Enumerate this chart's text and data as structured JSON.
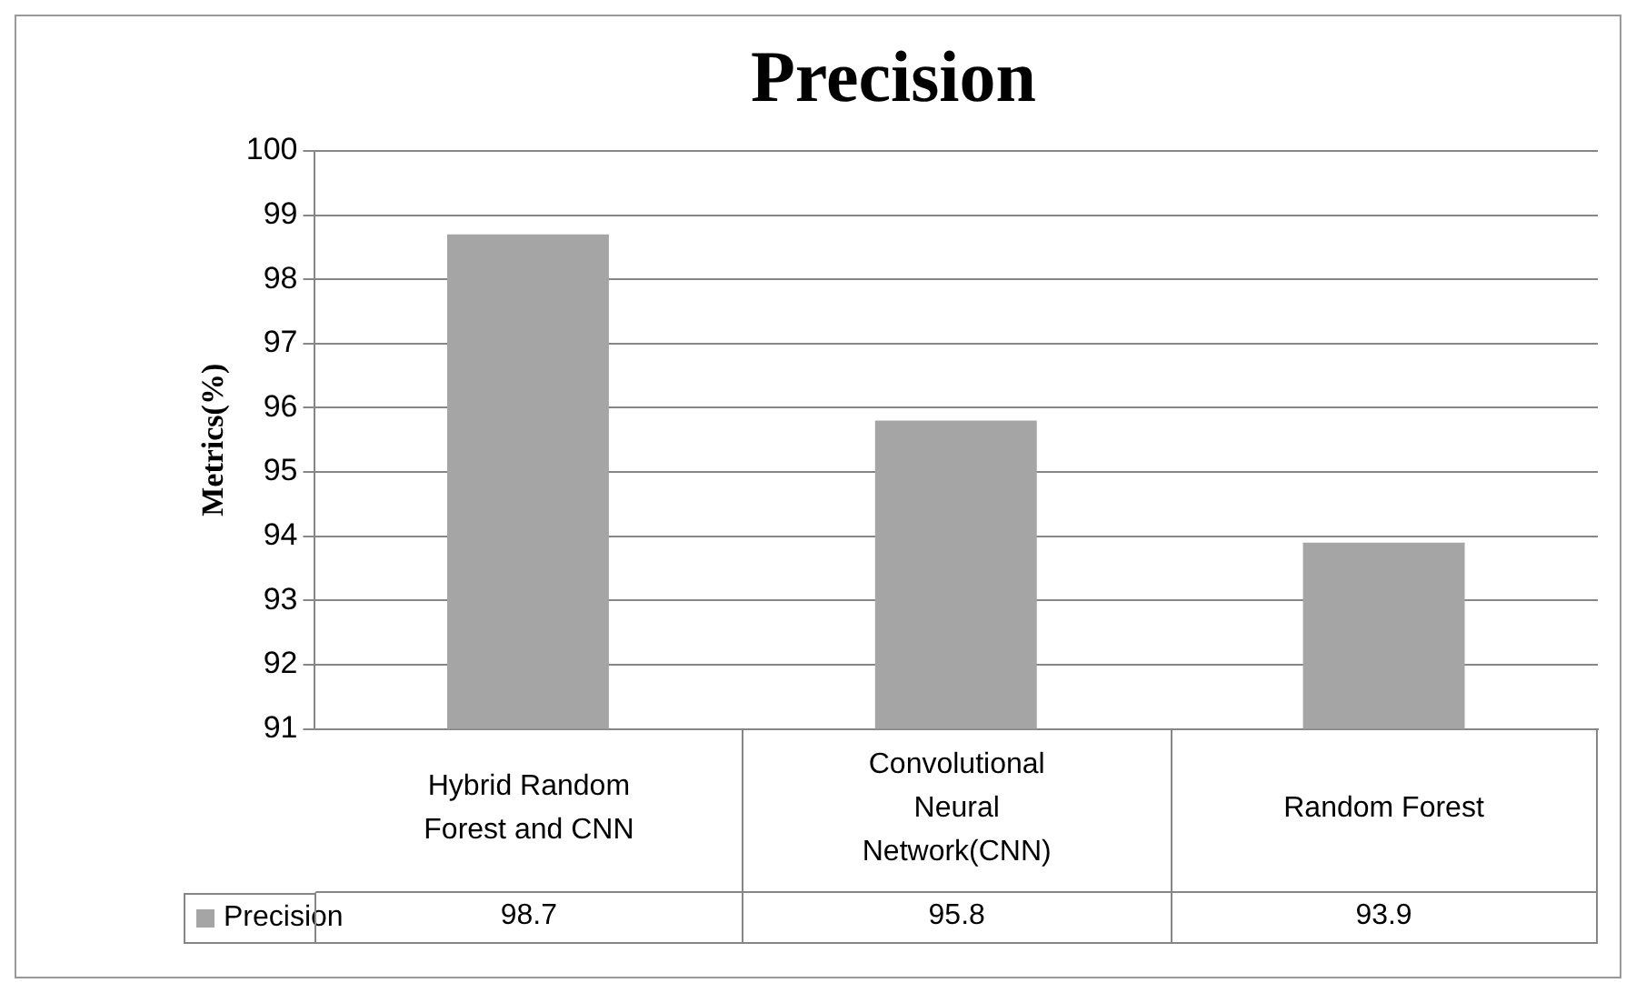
{
  "chart_data": {
    "type": "bar",
    "title": "Precision",
    "ylabel": "Metrics(%)",
    "categories": [
      "Hybrid Random Forest and CNN",
      "Convolutional Neural Network(CNN)",
      "Random Forest"
    ],
    "series": [
      {
        "name": "Precision",
        "color": "#a5a5a5",
        "values": [
          98.7,
          95.8,
          93.9
        ]
      }
    ],
    "ylim": [
      91,
      100
    ],
    "yticks": [
      91,
      92,
      93,
      94,
      95,
      96,
      97,
      98,
      99,
      100
    ],
    "grid": "y",
    "data_labels": true,
    "legend": "bottom left"
  }
}
